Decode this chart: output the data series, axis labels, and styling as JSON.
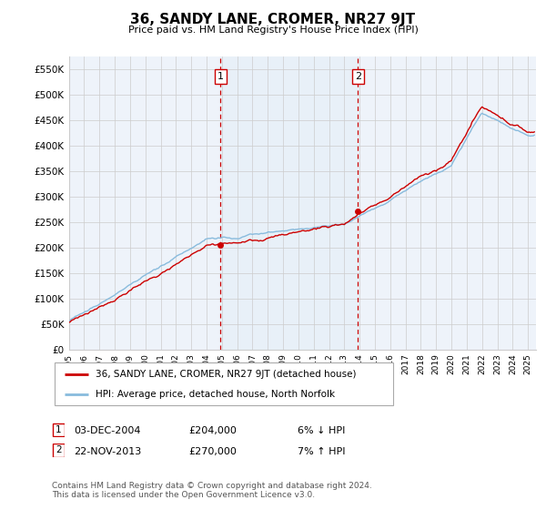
{
  "title": "36, SANDY LANE, CROMER, NR27 9JT",
  "subtitle": "Price paid vs. HM Land Registry's House Price Index (HPI)",
  "ylim": [
    0,
    575000
  ],
  "yticks": [
    0,
    50000,
    100000,
    150000,
    200000,
    250000,
    300000,
    350000,
    400000,
    450000,
    500000,
    550000
  ],
  "ytick_labels": [
    "£0",
    "£50K",
    "£100K",
    "£150K",
    "£200K",
    "£250K",
    "£300K",
    "£350K",
    "£400K",
    "£450K",
    "£500K",
    "£550K"
  ],
  "xlim_start": 1995.0,
  "xlim_end": 2025.5,
  "sale1_x": 2004.92,
  "sale1_y": 204000,
  "sale2_x": 2013.9,
  "sale2_y": 270000,
  "line_color_property": "#cc0000",
  "line_color_hpi": "#88bbdd",
  "shade_color": "#e8f0f8",
  "grid_color": "#cccccc",
  "background_color": "#ffffff",
  "legend_label_property": "36, SANDY LANE, CROMER, NR27 9JT (detached house)",
  "legend_label_hpi": "HPI: Average price, detached house, North Norfolk",
  "footer1": "Contains HM Land Registry data © Crown copyright and database right 2024.",
  "footer2": "This data is licensed under the Open Government Licence v3.0.",
  "table_row1": [
    "1",
    "03-DEC-2004",
    "£204,000",
    "6% ↓ HPI"
  ],
  "table_row2": [
    "2",
    "22-NOV-2013",
    "£270,000",
    "7% ↑ HPI"
  ]
}
